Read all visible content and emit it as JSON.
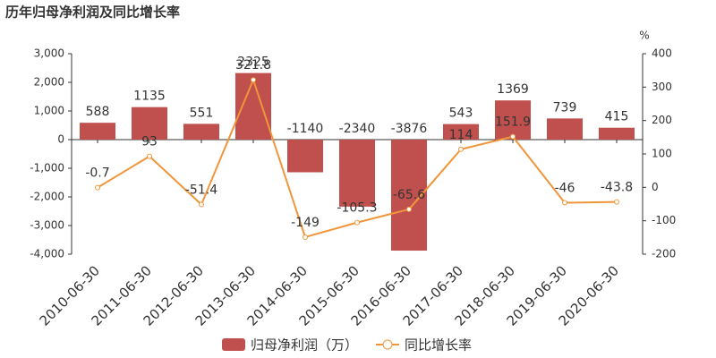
{
  "chart_data": {
    "type": "combo",
    "title": "历年归母净利润及同比增长率",
    "y2label": "%",
    "categories": [
      "2010-06-30",
      "2011-06-30",
      "2012-06-30",
      "2013-06-30",
      "2014-06-30",
      "2015-06-30",
      "2016-06-30",
      "2017-06-30",
      "2018-06-30",
      "2019-06-30",
      "2020-06-30"
    ],
    "series": [
      {
        "name": "归母净利润（万）",
        "type": "bar",
        "color": "#c0504d",
        "values": [
          588,
          1135,
          551,
          2325,
          -1140,
          -2340,
          -3876,
          543,
          1369,
          739,
          415
        ]
      },
      {
        "name": "同比增长率",
        "type": "line",
        "axis": "y2",
        "color": "#f0953a",
        "values": [
          -0.7,
          93,
          -51.4,
          321.8,
          -149,
          -105.3,
          -65.6,
          114,
          151.9,
          -46,
          -43.8
        ]
      }
    ],
    "ylim": [
      -4000,
      3000
    ],
    "yticks": [
      {
        "value": -4000,
        "label": "-4,000"
      },
      {
        "value": -3000,
        "label": "-3,000"
      },
      {
        "value": -2000,
        "label": "-2,000"
      },
      {
        "value": -1000,
        "label": "-1,000"
      },
      0,
      {
        "value": 1000,
        "label": "1,000"
      },
      {
        "value": 2000,
        "label": "2,000"
      },
      {
        "value": 3000,
        "label": "3,000"
      }
    ],
    "y2lim": [
      -200,
      400
    ],
    "y2ticks": [
      -200,
      -100,
      0,
      100,
      200,
      300,
      400
    ]
  }
}
